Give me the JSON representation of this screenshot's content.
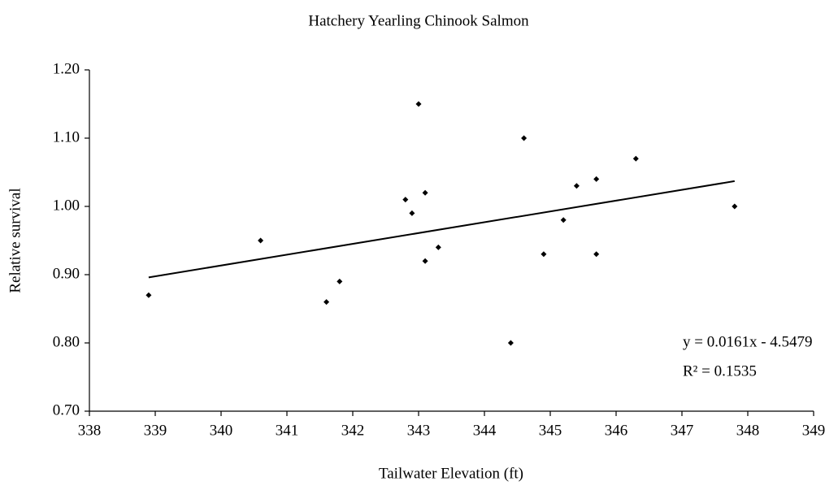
{
  "chart_data": {
    "type": "scatter",
    "title": "Hatchery Yearling Chinook Salmon",
    "x_label": "Tailwater Elevation (ft)",
    "y_label": "Relative survival",
    "color": "#000000",
    "x": [
      338.9,
      340.6,
      341.6,
      341.8,
      342.8,
      342.9,
      343.0,
      343.1,
      343.1,
      343.3,
      344.4,
      344.6,
      344.9,
      345.2,
      345.4,
      345.7,
      345.7,
      346.3,
      347.8
    ],
    "values": [
      0.87,
      0.95,
      0.86,
      0.89,
      1.01,
      0.99,
      1.15,
      1.02,
      0.92,
      0.94,
      0.8,
      1.1,
      0.93,
      0.98,
      1.03,
      1.04,
      0.93,
      1.07,
      1.0
    ],
    "trendline": {
      "x": [
        338.9,
        347.8
      ],
      "values": [
        0.896,
        1.037
      ]
    },
    "annotations": [
      "y = 0.0161x - 4.5479",
      "R² = 0.1535"
    ],
    "xlim": [
      338,
      349
    ],
    "xticks": [
      338,
      339,
      340,
      341,
      342,
      343,
      344,
      345,
      346,
      347,
      348,
      349
    ],
    "ylim": [
      0.7,
      1.2
    ],
    "yticks": [
      {
        "value": 0.7,
        "label": "0.70"
      },
      {
        "value": 0.8,
        "label": "0.80"
      },
      {
        "value": 0.9,
        "label": "0.90"
      },
      {
        "value": 1.0,
        "label": "1.00"
      },
      {
        "value": 1.1,
        "label": "1.10"
      },
      {
        "value": 1.2,
        "label": "1.20"
      }
    ],
    "grid": false
  }
}
